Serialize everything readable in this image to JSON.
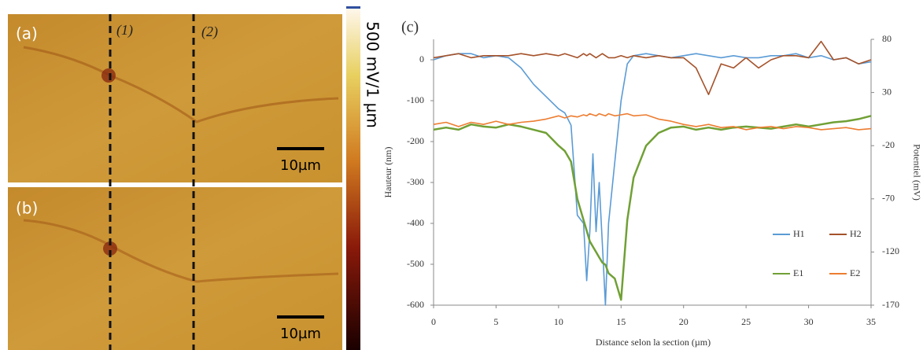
{
  "image_panels": {
    "labels": [
      "(a)",
      "(b)"
    ],
    "section_labels": [
      "(1)",
      "(2)"
    ],
    "scale_bar": "10µm",
    "colorbar_label": "500 mV/1 µm"
  },
  "chart_data": {
    "type": "line",
    "title": "(c)",
    "x_label": "Distance selon la section (µm)",
    "y_label": "Hauteur (nm)",
    "y2_label": "Potentiel (mV)",
    "x": [
      0,
      1,
      2,
      3,
      4,
      5,
      6,
      7,
      8,
      9,
      10,
      10.5,
      11,
      11.5,
      12,
      12.25,
      12.5,
      12.75,
      13,
      13.25,
      13.5,
      13.75,
      14,
      14.5,
      15,
      15.5,
      16,
      17,
      18,
      19,
      20,
      21,
      22,
      23,
      24,
      25,
      26,
      27,
      28,
      29,
      30,
      31,
      32,
      33,
      34,
      35
    ],
    "series": [
      {
        "name": "H1",
        "color": "#5b9bd5",
        "axis": "y",
        "values": [
          0,
          10,
          15,
          15,
          5,
          10,
          5,
          -20,
          -60,
          -90,
          -120,
          -130,
          -160,
          -380,
          -400,
          -540,
          -420,
          -230,
          -420,
          -300,
          -450,
          -600,
          -400,
          -250,
          -100,
          -10,
          10,
          15,
          10,
          5,
          10,
          15,
          10,
          5,
          10,
          5,
          5,
          10,
          10,
          15,
          5,
          10,
          0,
          5,
          -10,
          -5
        ]
      },
      {
        "name": "H2",
        "color": "#a5522a",
        "axis": "y",
        "values": [
          5,
          10,
          15,
          5,
          10,
          10,
          10,
          15,
          10,
          15,
          10,
          15,
          10,
          5,
          15,
          10,
          15,
          10,
          5,
          10,
          15,
          10,
          5,
          5,
          10,
          5,
          10,
          5,
          10,
          5,
          5,
          -20,
          -85,
          -10,
          -20,
          5,
          -20,
          0,
          10,
          10,
          5,
          45,
          0,
          5,
          -10,
          0
        ]
      },
      {
        "name": "E1",
        "color": "#70a035",
        "axis": "y2",
        "values": [
          -5,
          -3,
          -5,
          0,
          -2,
          -3,
          0,
          -2,
          -5,
          -8,
          -20,
          -25,
          -35,
          -70,
          -90,
          -100,
          -110,
          -115,
          -120,
          -125,
          -130,
          -132,
          -140,
          -145,
          -165,
          -90,
          -50,
          -20,
          -8,
          -3,
          -2,
          -5,
          -3,
          -5,
          -3,
          -2,
          -3,
          -4,
          -2,
          0,
          -2,
          0,
          2,
          3,
          5,
          8
        ]
      },
      {
        "name": "E2",
        "color": "#ed7d31",
        "axis": "y2",
        "values": [
          0,
          2,
          -2,
          2,
          0,
          3,
          0,
          2,
          3,
          5,
          8,
          6,
          8,
          7,
          9,
          8,
          10,
          9,
          8,
          10,
          9,
          8,
          10,
          8,
          9,
          10,
          8,
          9,
          5,
          3,
          0,
          -2,
          0,
          -3,
          -2,
          -5,
          -3,
          -2,
          -4,
          -2,
          -3,
          -5,
          -4,
          -3,
          -5,
          -4
        ]
      }
    ],
    "xlim": [
      0,
      35
    ],
    "xticks": [
      0,
      5,
      10,
      15,
      20,
      25,
      30,
      35
    ],
    "ylim": [
      -600,
      50
    ],
    "yticks": [
      0,
      -100,
      -200,
      -300,
      -400,
      -500,
      -600
    ],
    "y2lim": [
      -170,
      80
    ],
    "y2ticks": [
      80,
      30,
      -20,
      -70,
      -120,
      -170
    ],
    "legend": "lower right"
  }
}
